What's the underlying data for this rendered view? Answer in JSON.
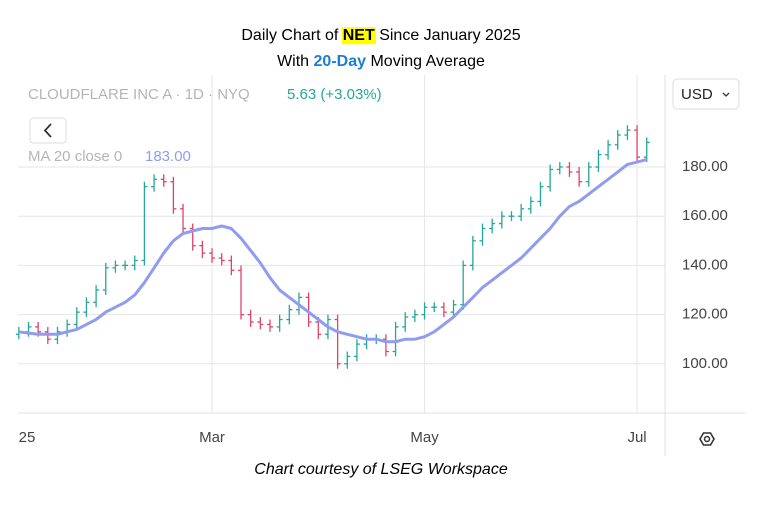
{
  "chart_data": {
    "type": "ohlc",
    "title": [
      "Daily Chart of ",
      "NET",
      " Since January 2025"
    ],
    "subtitle": [
      "With ",
      "20-Day",
      " Moving Average"
    ],
    "symbol": "CLOUDFLARE INC A · 1D · NYQ",
    "change": "5.63 (+3.03%)",
    "currency": "USD",
    "source": "Chart courtesy of LSEG Workspace",
    "up_color": "#26a69a",
    "down_color": "#e0436a",
    "categories": [
      "25",
      null,
      null,
      null,
      null,
      null,
      null,
      null,
      null,
      null,
      null,
      null,
      null,
      null,
      null,
      null,
      null,
      null,
      null,
      null,
      "Mar",
      null,
      null,
      null,
      null,
      null,
      null,
      null,
      null,
      null,
      null,
      null,
      null,
      null,
      null,
      null,
      null,
      null,
      null,
      null,
      null,
      null,
      "May",
      null,
      null,
      null,
      null,
      null,
      null,
      null,
      null,
      null,
      null,
      null,
      null,
      null,
      null,
      null,
      null,
      null,
      null,
      null,
      null,
      null,
      "Jul",
      null
    ],
    "open": [
      112,
      113,
      115,
      113,
      110,
      113,
      116,
      121,
      125,
      130,
      139,
      140,
      140,
      142,
      172,
      175,
      174,
      163,
      155,
      148,
      145,
      143,
      142,
      138,
      120,
      117,
      116,
      115,
      118,
      122,
      127,
      117,
      112,
      118,
      100,
      103,
      108,
      110,
      110,
      105,
      115,
      119,
      120,
      123,
      123,
      121,
      124,
      140,
      150,
      155,
      157,
      160,
      160,
      163,
      166,
      172,
      179,
      180,
      178,
      174,
      180,
      185,
      189,
      193,
      195,
      184
    ],
    "high": [
      115,
      117,
      117,
      115,
      115,
      118,
      123,
      127,
      132,
      141,
      142,
      142,
      144,
      174,
      177,
      177,
      176,
      165,
      157,
      150,
      147,
      145,
      144,
      140,
      122,
      119,
      118,
      120,
      124,
      129,
      129,
      119,
      120,
      120,
      105,
      110,
      112,
      112,
      112,
      117,
      121,
      122,
      125,
      125,
      125,
      126,
      142,
      152,
      157,
      159,
      162,
      162,
      165,
      168,
      174,
      181,
      182,
      182,
      180,
      182,
      187,
      191,
      195,
      197,
      197,
      192
    ],
    "low": [
      110,
      111,
      111,
      108,
      108,
      111,
      114,
      119,
      123,
      128,
      137,
      138,
      138,
      140,
      170,
      172,
      161,
      153,
      146,
      143,
      141,
      140,
      136,
      118,
      115,
      114,
      113,
      113,
      116,
      120,
      115,
      110,
      110,
      98,
      98,
      101,
      106,
      108,
      103,
      103,
      113,
      117,
      118,
      121,
      119,
      119,
      122,
      138,
      148,
      153,
      155,
      158,
      158,
      161,
      164,
      170,
      177,
      176,
      172,
      172,
      178,
      183,
      187,
      191,
      182,
      182
    ],
    "close": [
      113,
      115,
      113,
      110,
      113,
      116,
      121,
      125,
      130,
      139,
      140,
      140,
      142,
      172,
      175,
      174,
      163,
      155,
      148,
      145,
      143,
      142,
      138,
      120,
      117,
      116,
      115,
      118,
      122,
      127,
      117,
      112,
      118,
      100,
      103,
      108,
      110,
      110,
      105,
      115,
      119,
      120,
      123,
      123,
      121,
      124,
      140,
      150,
      155,
      157,
      160,
      160,
      163,
      166,
      172,
      179,
      180,
      178,
      174,
      180,
      185,
      189,
      193,
      195,
      184,
      190
    ],
    "ma": {
      "name": "MA 20 close 0",
      "last": "183.00",
      "color": "#8f9cf0",
      "values": [
        113,
        112.5,
        112,
        112,
        112,
        113,
        114,
        116,
        118,
        121,
        123,
        125,
        128,
        133,
        139,
        145,
        150,
        153,
        154,
        155,
        155,
        156,
        155,
        151,
        146,
        141,
        135,
        130,
        127,
        124,
        121,
        118,
        115,
        113,
        112,
        111,
        110,
        110,
        109,
        109,
        110,
        110,
        111,
        113,
        116,
        119,
        123,
        127,
        131,
        134,
        137,
        140,
        143,
        147,
        151,
        155,
        160,
        164,
        166,
        169,
        172,
        175,
        178,
        181,
        182,
        183
      ]
    },
    "ylim": [
      80,
      217.4
    ],
    "yticks": [
      {
        "value": 100,
        "label": "100.00"
      },
      {
        "value": 120,
        "label": "120.00"
      },
      {
        "value": 140,
        "label": "140.00"
      },
      {
        "value": 160,
        "label": "160.00"
      },
      {
        "value": 180,
        "label": "180.00"
      }
    ],
    "grid": true
  }
}
